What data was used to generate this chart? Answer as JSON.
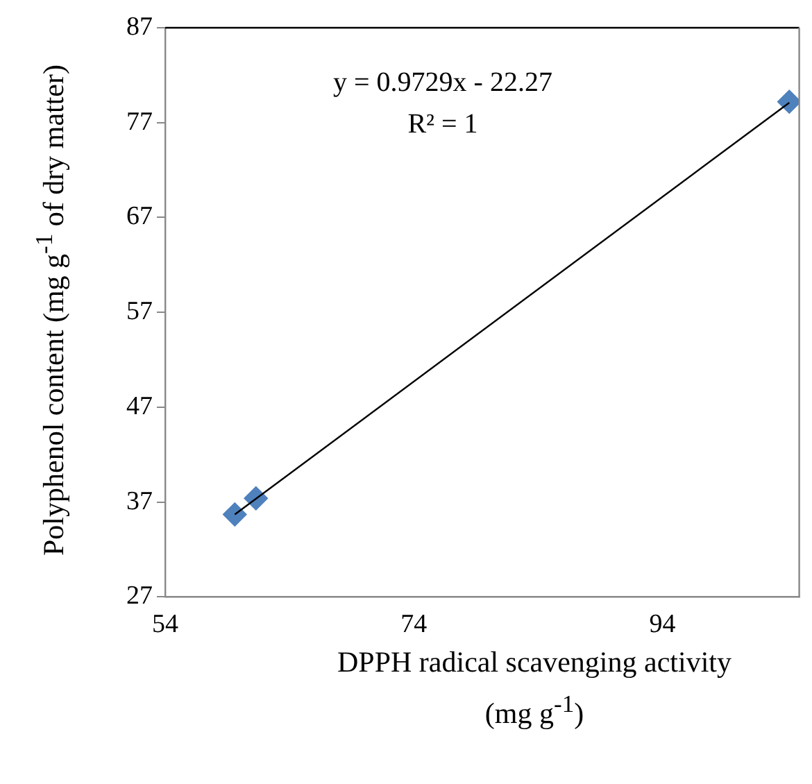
{
  "chart_data": {
    "type": "scatter",
    "xlabel": "DPPH radical scavenging activity (mg g$^{-1}$)",
    "ylabel": "Polyphenol content (mg g$^{-1}$ of dry matter)",
    "annotations": [
      "y = 0.9729x - 22.27",
      "R² = 1"
    ],
    "x": [
      59.6,
      61.3,
      104.2
    ],
    "series": [
      {
        "color": "#4f81bd",
        "values": [
          35.7,
          37.4,
          79.2
        ],
        "marker": "diamond"
      },
      {
        "type": "line",
        "color": "#000000",
        "x": [
          59.6,
          104.2
        ],
        "values": [
          35.7,
          79.1
        ],
        "marker": "none"
      }
    ],
    "xlim": [
      54,
      105
    ],
    "xticks": [
      54,
      74,
      94
    ],
    "ylim": [
      27,
      87
    ],
    "yticks": [
      27,
      37,
      47,
      57,
      67,
      77,
      87
    ],
    "grid": false,
    "legend": false
  }
}
